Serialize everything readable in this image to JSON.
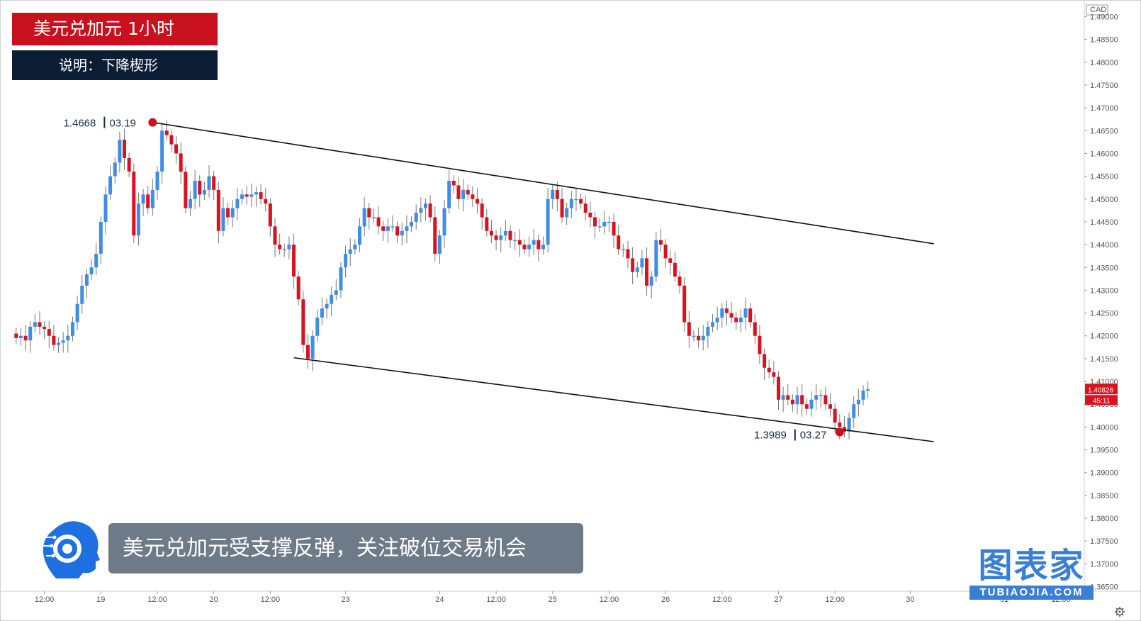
{
  "title": "美元兑加元 1小时",
  "description": "说明：下降楔形",
  "banner_text": "美元兑加元受支撑反弹，关注破位交易机会",
  "logo": {
    "name": "图表家",
    "url": "TUBIAOJIA.COM",
    "icon": "ai-head-icon"
  },
  "chart_data": {
    "type": "candlestick",
    "currency": "CAD",
    "ylim": [
      1.364,
      1.491
    ],
    "y_ticks": [
      "1.49000",
      "1.48500",
      "1.48000",
      "1.47500",
      "1.47000",
      "1.46500",
      "1.46000",
      "1.45500",
      "1.45000",
      "1.44500",
      "1.44000",
      "1.43500",
      "1.43000",
      "1.42500",
      "1.42000",
      "1.41500",
      "1.41000",
      "1.40500",
      "1.40000",
      "1.39500",
      "1.39000",
      "1.38500",
      "1.38000",
      "1.37500",
      "1.37000",
      "1.36500"
    ],
    "x_ticks": [
      {
        "label": "12:00",
        "h": -24
      },
      {
        "label": "19",
        "h": -12
      },
      {
        "label": "12:00",
        "h": 0
      },
      {
        "label": "20",
        "h": 12
      },
      {
        "label": "12:00",
        "h": 24
      },
      {
        "label": "23",
        "h": 40
      },
      {
        "label": "24",
        "h": 60
      },
      {
        "label": "12:00",
        "h": 72
      },
      {
        "label": "25",
        "h": 84
      },
      {
        "label": "12:00",
        "h": 96
      },
      {
        "label": "26",
        "h": 108
      },
      {
        "label": "12:00",
        "h": 120
      },
      {
        "label": "27",
        "h": 132
      },
      {
        "label": "12:00",
        "h": 144
      },
      {
        "label": "30",
        "h": 160
      },
      {
        "label": "31",
        "h": 180
      },
      {
        "label": "12:00",
        "h": 192
      }
    ],
    "last_price": "1.40826",
    "countdown": "45:11",
    "high_point": {
      "price": "1.4668",
      "label": "03.19",
      "h": -1
    },
    "low_point": {
      "price": "1.3989",
      "label": "03.27",
      "h": 145
    },
    "trendlines": [
      {
        "name": "upper",
        "from": {
          "h": -1,
          "y": 1.4668
        },
        "to": {
          "h": 165,
          "y": 1.4402
        }
      },
      {
        "name": "lower",
        "from": {
          "h": 29,
          "y": 1.4152
        },
        "to": {
          "h": 165,
          "y": 1.3968
        }
      }
    ],
    "candles_close": [
      1.4195,
      1.42,
      1.419,
      1.422,
      1.423,
      1.422,
      1.4215,
      1.42,
      1.418,
      1.4185,
      1.419,
      1.42,
      1.423,
      1.427,
      1.431,
      1.4335,
      1.435,
      1.438,
      1.445,
      1.451,
      1.455,
      1.458,
      1.463,
      1.459,
      1.456,
      1.442,
      1.449,
      1.451,
      1.448,
      1.452,
      1.456,
      1.465,
      1.464,
      1.462,
      1.46,
      1.456,
      1.448,
      1.45,
      1.454,
      1.451,
      1.452,
      1.455,
      1.452,
      1.443,
      1.448,
      1.446,
      1.448,
      1.45,
      1.451,
      1.4505,
      1.451,
      1.4515,
      1.45,
      1.449,
      1.444,
      1.44,
      1.439,
      1.439,
      1.44,
      1.433,
      1.428,
      1.418,
      1.415,
      1.42,
      1.424,
      1.426,
      1.427,
      1.429,
      1.43,
      1.435,
      1.438,
      1.439,
      1.44,
      1.444,
      1.448,
      1.446,
      1.446,
      1.444,
      1.443,
      1.444,
      1.444,
      1.442,
      1.443,
      1.444,
      1.445,
      1.447,
      1.448,
      1.449,
      1.446,
      1.438,
      1.442,
      1.448,
      1.454,
      1.453,
      1.45,
      1.452,
      1.451,
      1.45,
      1.449,
      1.446,
      1.443,
      1.442,
      1.441,
      1.442,
      1.443,
      1.441,
      1.441,
      1.44,
      1.439,
      1.44,
      1.441,
      1.439,
      1.44,
      1.45,
      1.452,
      1.45,
      1.446,
      1.448,
      1.45,
      1.45,
      1.449,
      1.447,
      1.446,
      1.444,
      1.444,
      1.445,
      1.445,
      1.442,
      1.439,
      1.439,
      1.437,
      1.434,
      1.435,
      1.437,
      1.431,
      1.433,
      1.441,
      1.44,
      1.437,
      1.436,
      1.433,
      1.431,
      1.423,
      1.42,
      1.42,
      1.419,
      1.42,
      1.422,
      1.423,
      1.424,
      1.426,
      1.425,
      1.424,
      1.423,
      1.424,
      1.426,
      1.423,
      1.42,
      1.416,
      1.413,
      1.412,
      1.411,
      1.406,
      1.407,
      1.406,
      1.405,
      1.407,
      1.405,
      1.404,
      1.406,
      1.407,
      1.407,
      1.405,
      1.404,
      1.401,
      1.4,
      1.399,
      1.402,
      1.405,
      1.406,
      1.408,
      1.4083
    ]
  }
}
